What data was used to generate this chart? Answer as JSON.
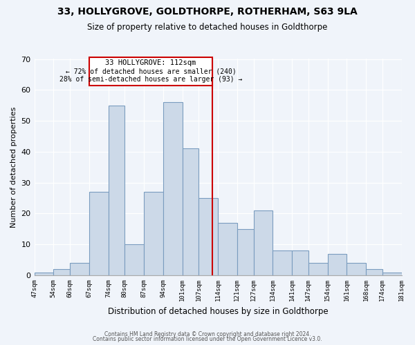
{
  "title": "33, HOLLYGROVE, GOLDTHORPE, ROTHERHAM, S63 9LA",
  "subtitle": "Size of property relative to detached houses in Goldthorpe",
  "xlabel": "Distribution of detached houses by size in Goldthorpe",
  "ylabel": "Number of detached properties",
  "bins": [
    47,
    54,
    60,
    67,
    74,
    80,
    87,
    94,
    101,
    107,
    114,
    121,
    127,
    134,
    141,
    147,
    154,
    161,
    168,
    174,
    181
  ],
  "counts": [
    1,
    2,
    4,
    27,
    55,
    10,
    27,
    56,
    41,
    25,
    17,
    15,
    21,
    8,
    8,
    4,
    7,
    4,
    2,
    1
  ],
  "bar_color": "#ccd9e8",
  "bar_edge_color": "#7a9cbf",
  "property_line_x": 112,
  "property_line_color": "#cc0000",
  "annotation_title": "33 HOLLYGROVE: 112sqm",
  "annotation_line1": "← 72% of detached houses are smaller (240)",
  "annotation_line2": "28% of semi-detached houses are larger (93) →",
  "annotation_box_facecolor": "#ffffff",
  "annotation_box_edgecolor": "#cc0000",
  "ylim": [
    0,
    70
  ],
  "yticks": [
    0,
    10,
    20,
    30,
    40,
    50,
    60,
    70
  ],
  "tick_labels": [
    "47sqm",
    "54sqm",
    "60sqm",
    "67sqm",
    "74sqm",
    "80sqm",
    "87sqm",
    "94sqm",
    "101sqm",
    "107sqm",
    "114sqm",
    "121sqm",
    "127sqm",
    "134sqm",
    "141sqm",
    "147sqm",
    "154sqm",
    "161sqm",
    "168sqm",
    "174sqm",
    "181sqm"
  ],
  "footer1": "Contains HM Land Registry data © Crown copyright and database right 2024.",
  "footer2": "Contains public sector information licensed under the Open Government Licence v3.0.",
  "background_color": "#f0f4fa",
  "grid_color": "#ffffff"
}
